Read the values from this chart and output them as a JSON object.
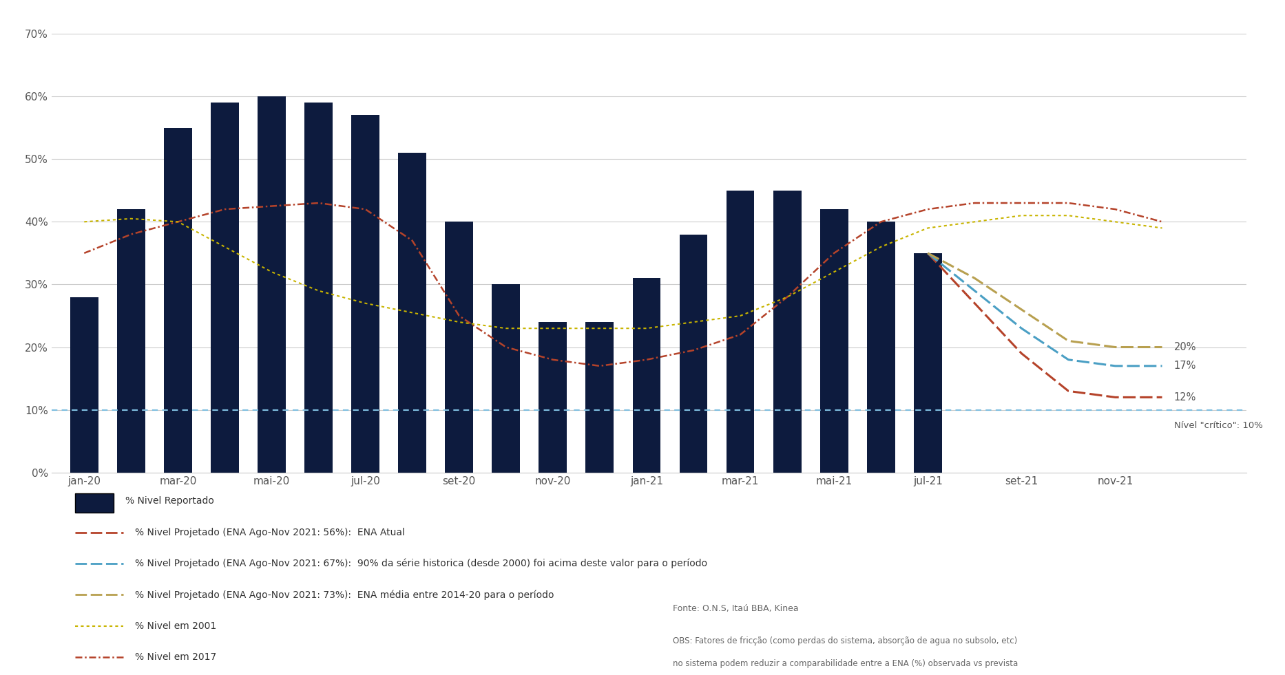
{
  "bar_months_idx": [
    0,
    1,
    2,
    3,
    4,
    5,
    6,
    7,
    8,
    9,
    10,
    11,
    12,
    13,
    14,
    15,
    16,
    17,
    18
  ],
  "bar_values": [
    28,
    42,
    55,
    59,
    60,
    59,
    57,
    51,
    40,
    30,
    24,
    24,
    31,
    38,
    45,
    45,
    42,
    40,
    35
  ],
  "bar_color": "#0d1b3e",
  "nivel_2017_x": [
    0,
    1,
    2,
    3,
    4,
    5,
    6,
    7,
    8,
    9,
    10,
    11,
    12,
    13,
    14,
    15,
    16,
    17,
    18,
    19,
    20,
    21,
    22,
    23
  ],
  "nivel_2017_y": [
    35,
    38,
    40,
    42,
    42.5,
    43,
    42,
    37,
    25,
    20,
    18,
    17,
    18,
    19.5,
    22,
    28,
    35,
    40,
    42,
    43,
    43,
    43,
    42,
    40
  ],
  "nivel_2017_color": "#b5432a",
  "nivel_2001_x": [
    0,
    1,
    2,
    3,
    4,
    5,
    6,
    7,
    8,
    9,
    10,
    11,
    12,
    13,
    14,
    15,
    16,
    17,
    18,
    19,
    20,
    21,
    22,
    23
  ],
  "nivel_2001_y": [
    40,
    40.5,
    40,
    36,
    32,
    29,
    27,
    25.5,
    24,
    23,
    23,
    23,
    23,
    24,
    25,
    28,
    32,
    36,
    39,
    40,
    41,
    41,
    40,
    39
  ],
  "nivel_2001_color": "#c8b400",
  "proj_red_x": [
    18,
    19,
    20,
    21,
    22,
    23
  ],
  "proj_red_y": [
    35,
    27,
    19,
    13,
    12,
    12
  ],
  "proj_red_color": "#b5432a",
  "proj_blue_x": [
    18,
    19,
    20,
    21,
    22,
    23
  ],
  "proj_blue_y": [
    35,
    29,
    23,
    18,
    17,
    17
  ],
  "proj_blue_color": "#4a9fc4",
  "proj_gold_x": [
    18,
    19,
    20,
    21,
    22,
    23
  ],
  "proj_gold_y": [
    35,
    31,
    26,
    21,
    20,
    20
  ],
  "proj_gold_color": "#b8a050",
  "critical_y": 10,
  "critical_color": "#7fbfe0",
  "label_gold_end": "20%",
  "label_blue_end": "17%",
  "label_red_end": "12%",
  "label_critical": "Nível \"crítico\": 10%",
  "x_ticks_pos": [
    0,
    2,
    4,
    6,
    8,
    10,
    12,
    14,
    16,
    18,
    20,
    22
  ],
  "x_labels": [
    "jan-20",
    "mar-20",
    "mai-20",
    "jul-20",
    "set-20",
    "nov-20",
    "jan-21",
    "mar-21",
    "mai-21",
    "jul-21",
    "set-21",
    "nov-21"
  ],
  "ylim": [
    0,
    70
  ],
  "yticks": [
    0,
    10,
    20,
    30,
    40,
    50,
    60,
    70
  ],
  "legend_bar_label": "% Nivel Reportado",
  "legend_red_label": "% Nivel Projetado (ENA Ago-Nov 2021: 56%):  ENA Atual",
  "legend_blue_label": "% Nivel Projetado (ENA Ago-Nov 2021: 67%):  90% da série historica (desde 2000) foi acima deste valor para o período",
  "legend_gold_label": "% Nivel Projetado (ENA Ago-Nov 2021: 73%):  ENA média entre 2014-20 para o período",
  "legend_2001_label": "% Nivel em 2001",
  "legend_2017_label": "% Nivel em 2017",
  "fonte": "Fonte: O.N.S, Itaú BBA, Kinea",
  "obs_line1": "OBS: Fatores de fricção (como perdas do sistema, absorção de agua no subsolo, etc)",
  "obs_line2": "no sistema podem reduzir a comparabilidade entre a ENA (%) observada vs prevista",
  "background_color": "#ffffff",
  "grid_color": "#cccccc",
  "spine_color": "#cccccc"
}
